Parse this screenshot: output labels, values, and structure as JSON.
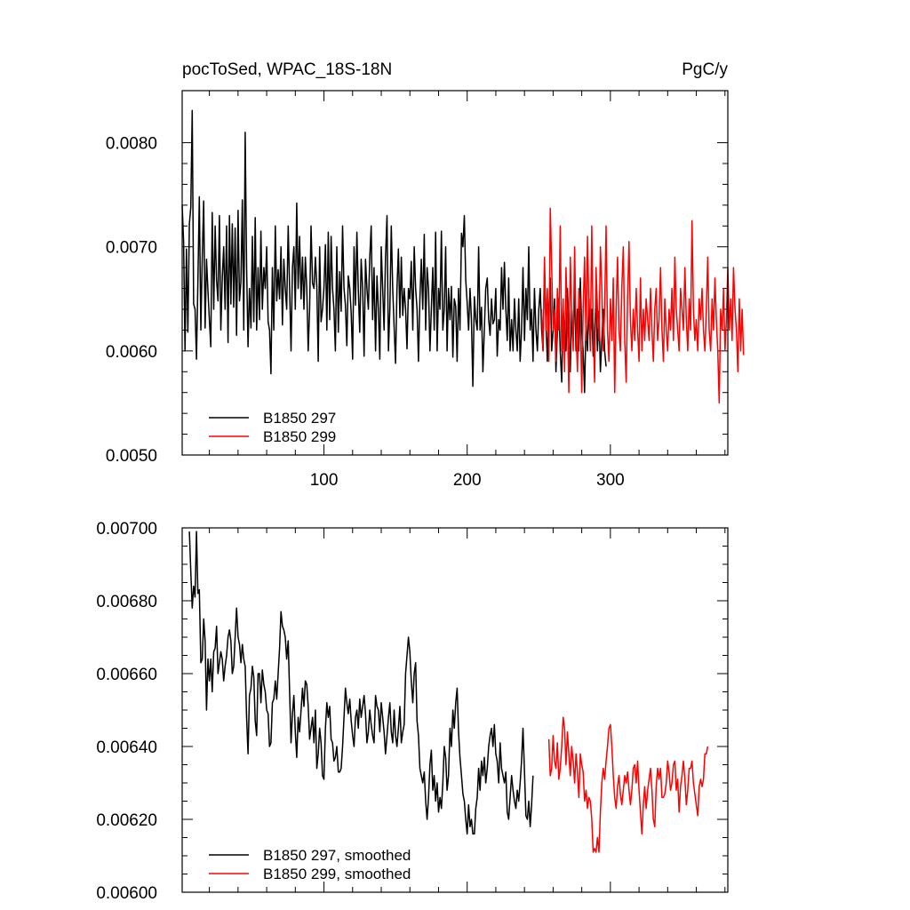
{
  "chart_data": [
    {
      "type": "line",
      "title_left": "pocToSed, WPAC_18S-18N",
      "title_right": "PgC/y",
      "xlabel": "",
      "ylabel": "",
      "xlim": [
        1,
        382
      ],
      "ylim": [
        0.005,
        0.0085
      ],
      "x_ticks": [
        100,
        200,
        300
      ],
      "x_tick_labels": [
        "100",
        "200",
        "300"
      ],
      "y_ticks": [
        0.005,
        0.006,
        0.007,
        0.008
      ],
      "y_tick_labels": [
        "0.0050",
        "0.0060",
        "0.0070",
        "0.0080"
      ],
      "grid": false,
      "legend_position": "bottom-left",
      "series": [
        {
          "name": "B1850 297",
          "color": "#000000",
          "x_start": 1,
          "values": [
            0.0074,
            0.00705,
            0.006,
            0.00698,
            0.00618,
            0.00722,
            0.00738,
            0.00831,
            0.00645,
            0.0064,
            0.00592,
            0.00668,
            0.00748,
            0.0062,
            0.0069,
            0.00744,
            0.00622,
            0.00688,
            0.00658,
            0.0063,
            0.00604,
            0.00733,
            0.0064,
            0.0072,
            0.00668,
            0.00648,
            0.0073,
            0.0062,
            0.0067,
            0.007,
            0.0064,
            0.0072,
            0.00608,
            0.0073,
            0.00645,
            0.00722,
            0.00642,
            0.00718,
            0.00615,
            0.00735,
            0.00648,
            0.00666,
            0.00745,
            0.0062,
            0.0081,
            0.0068,
            0.00604,
            0.0066,
            0.00622,
            0.0071,
            0.00628,
            0.00728,
            0.0062,
            0.0068,
            0.0063,
            0.00715,
            0.0064,
            0.0068,
            0.0066,
            0.007,
            0.00628,
            0.0062,
            0.00578,
            0.0068,
            0.0062,
            0.0072,
            0.00648,
            0.00678,
            0.0065,
            0.007,
            0.00625,
            0.00688,
            0.0066,
            0.0064,
            0.0072,
            0.0066,
            0.006,
            0.0068,
            0.007,
            0.0064,
            0.00742,
            0.0066,
            0.0071,
            0.0065,
            0.0069,
            0.0064,
            0.0069,
            0.0066,
            0.006,
            0.0064,
            0.0072,
            0.00665,
            0.0066,
            0.0069,
            0.00662,
            0.0059,
            0.007,
            0.00628,
            0.0064,
            0.0066,
            0.00702,
            0.0062,
            0.00714,
            0.0063,
            0.0071,
            0.0066,
            0.0064,
            0.006,
            0.007,
            0.00618,
            0.00676,
            0.00638,
            0.0072,
            0.0066,
            0.00644,
            0.00605,
            0.00672,
            0.0066,
            0.00636,
            0.00592,
            0.007,
            0.00644,
            0.00714,
            0.00658,
            0.00618,
            0.00688,
            0.0066,
            0.00595,
            0.00688,
            0.0066,
            0.0064,
            0.0069,
            0.0072,
            0.0063,
            0.0068,
            0.006,
            0.00672,
            0.0064,
            0.00592,
            0.007,
            0.0066,
            0.0062,
            0.0069,
            0.0073,
            0.006,
            0.0064,
            0.0072,
            0.0066,
            0.00623,
            0.00588,
            0.0066,
            0.00698,
            0.00632,
            0.0069,
            0.00634,
            0.0066,
            0.0064,
            0.00602,
            0.0066,
            0.0065,
            0.00686,
            0.0062,
            0.007,
            0.0066,
            0.0064,
            0.0059,
            0.0065,
            0.00688,
            0.0064,
            0.00712,
            0.0062,
            0.0068,
            0.0066,
            0.006,
            0.0064,
            0.0068,
            0.0062,
            0.00714,
            0.006,
            0.0066,
            0.0064,
            0.00715,
            0.0062,
            0.0064,
            0.007,
            0.006,
            0.0066,
            0.0063,
            0.00662,
            0.00594,
            0.0065,
            0.00643,
            0.0059,
            0.0066,
            0.0062,
            0.00713,
            0.007,
            0.0073,
            0.00668,
            0.00646,
            0.0062,
            0.0066,
            0.0063,
            0.00566,
            0.00652,
            0.0063,
            0.0062,
            0.007,
            0.0062,
            0.00642,
            0.0058,
            0.0062,
            0.0066,
            0.0067,
            0.0063,
            0.00615,
            0.0065,
            0.00626,
            0.0063,
            0.0066,
            0.00595,
            0.0063,
            0.0062,
            0.0068,
            0.0064,
            0.00685,
            0.0064,
            0.0061,
            0.0067,
            0.006,
            0.0063,
            0.006,
            0.0065,
            0.0062,
            0.006,
            0.0065,
            0.0059,
            0.0062,
            0.0068,
            0.0061,
            0.0066,
            0.0063,
            0.007,
            0.0062,
            0.0064,
            0.0059,
            0.0066,
            0.0062,
            0.006,
            0.0064,
            0.0066,
            0.0062,
            0.006,
            0.0068,
            0.0063,
            0.0059,
            0.0064,
            0.0067,
            0.006,
            0.0062,
            0.0065,
            0.0058,
            0.0062,
            0.0065,
            0.006,
            0.0057,
            0.0064,
            0.0062,
            0.006,
            0.0066,
            0.0062,
            0.0058,
            0.0064,
            0.0061,
            0.0066,
            0.006,
            0.0064,
            0.006,
            0.0067,
            0.0062,
            0.006,
            0.0056,
            0.0063,
            0.006,
            0.0065,
            0.0061,
            0.0064,
            0.00595,
            0.0062,
            0.0065,
            0.006,
            0.00638,
            0.0058,
            0.0061,
            0.0064,
            0.006,
            0.00585
          ]
        },
        {
          "name": "B1850 299",
          "color": "#ff0000",
          "x_start": 252,
          "values": [
            0.0064,
            0.006,
            0.0069,
            0.0062,
            0.0066,
            0.0059,
            0.00737,
            0.0068,
            0.0062,
            0.0064,
            0.0059,
            0.0066,
            0.0062,
            0.0072,
            0.006,
            0.0065,
            0.0058,
            0.0068,
            0.0063,
            0.0056,
            0.0069,
            0.0064,
            0.006,
            0.007,
            0.0062,
            0.0058,
            0.0066,
            0.0064,
            0.0056,
            0.0064,
            0.0069,
            0.0061,
            0.0071,
            0.0064,
            0.006,
            0.0072,
            0.0062,
            0.0057,
            0.0068,
            0.0064,
            0.0061,
            0.007,
            0.0066,
            0.006,
            0.0064,
            0.0072,
            0.0062,
            0.0059,
            0.0065,
            0.0061,
            0.0067,
            0.0056,
            0.0064,
            0.0069,
            0.0062,
            0.006,
            0.0066,
            0.007,
            0.0061,
            0.0057,
            0.0065,
            0.00705,
            0.0063,
            0.006,
            0.0064,
            0.0061,
            0.0066,
            0.0062,
            0.0059,
            0.0067,
            0.006,
            0.0064,
            0.0061,
            0.0065,
            0.0063,
            0.0061,
            0.0066,
            0.0062,
            0.0059,
            0.0064,
            0.0066,
            0.0061,
            0.0063,
            0.0068,
            0.0062,
            0.0059,
            0.0065,
            0.0062,
            0.006,
            0.0064,
            0.0062,
            0.0066,
            0.0061,
            0.0069,
            0.0064,
            0.0062,
            0.006,
            0.0066,
            0.0064,
            0.0062,
            0.0068,
            0.0063,
            0.006,
            0.0065,
            0.0062,
            0.00725,
            0.0064,
            0.0061,
            0.0063,
            0.006,
            0.0065,
            0.0063,
            0.0066,
            0.0062,
            0.006,
            0.0064,
            0.0069,
            0.0062,
            0.006,
            0.0065,
            0.0062,
            0.0067,
            0.0063,
            0.006,
            0.0055,
            0.0064,
            0.0062,
            0.0066,
            0.006,
            0.0063,
            0.0068,
            0.0062,
            0.0065,
            0.0061,
            0.0068,
            0.0064,
            0.0062,
            0.0058,
            0.0065,
            0.006,
            0.0064,
            0.00596
          ]
        }
      ]
    },
    {
      "type": "line",
      "title_left": "",
      "title_right": "",
      "xlabel": "",
      "ylabel": "",
      "xlim": [
        1,
        382
      ],
      "ylim": [
        0.006,
        0.007
      ],
      "x_ticks": [
        100,
        200,
        300
      ],
      "x_tick_labels": [],
      "y_ticks": [
        0.006,
        0.0062,
        0.0064,
        0.0066,
        0.0068,
        0.007
      ],
      "y_tick_labels": [
        "0.00600",
        "0.00620",
        "0.00640",
        "0.00660",
        "0.00680",
        "0.00700"
      ],
      "grid": false,
      "legend_position": "bottom-left",
      "series": [
        {
          "name": "B1850 297, smoothed",
          "color": "#000000",
          "x_start": 6,
          "values": [
            0.00699,
            0.00688,
            0.00678,
            0.00684,
            0.00681,
            0.00699,
            0.00682,
            0.00683,
            0.00663,
            0.00664,
            0.00675,
            0.00669,
            0.0065,
            0.00664,
            0.00658,
            0.00664,
            0.00655,
            0.00666,
            0.00667,
            0.00673,
            0.0066,
            0.00663,
            0.00666,
            0.00664,
            0.00658,
            0.00662,
            0.00665,
            0.0067,
            0.00672,
            0.00669,
            0.0066,
            0.00662,
            0.0067,
            0.00678,
            0.0067,
            0.00668,
            0.00663,
            0.00668,
            0.00664,
            0.00662,
            0.00648,
            0.00638,
            0.00654,
            0.00656,
            0.00662,
            0.00659,
            0.00647,
            0.00643,
            0.0066,
            0.0066,
            0.00652,
            0.00661,
            0.00657,
            0.00655,
            0.0065,
            0.00649,
            0.0064,
            0.00641,
            0.00652,
            0.00653,
            0.00658,
            0.00653,
            0.0066,
            0.00667,
            0.00677,
            0.00673,
            0.00672,
            0.0067,
            0.00664,
            0.00669,
            0.00655,
            0.00641,
            0.00649,
            0.00654,
            0.00644,
            0.00637,
            0.00648,
            0.00644,
            0.0065,
            0.00656,
            0.00651,
            0.00658,
            0.00657,
            0.00651,
            0.00642,
            0.00645,
            0.00648,
            0.00641,
            0.0065,
            0.00634,
            0.00638,
            0.00645,
            0.00641,
            0.00632,
            0.00631,
            0.00645,
            0.00652,
            0.00648,
            0.00651,
            0.00642,
            0.00641,
            0.00636,
            0.00637,
            0.0064,
            0.00633,
            0.00633,
            0.00634,
            0.0064,
            0.00648,
            0.00656,
            0.00652,
            0.00649,
            0.00653,
            0.00647,
            0.00643,
            0.0064,
            0.00648,
            0.0065,
            0.00645,
            0.00653,
            0.00648,
            0.00651,
            0.00654,
            0.00649,
            0.00641,
            0.00644,
            0.0065,
            0.00646,
            0.00643,
            0.00641,
            0.00654,
            0.00651,
            0.0065,
            0.00644,
            0.00652,
            0.00648,
            0.00644,
            0.00638,
            0.00643,
            0.00648,
            0.00652,
            0.00644,
            0.00641,
            0.0065,
            0.00643,
            0.0064,
            0.00645,
            0.00651,
            0.00641,
            0.00644,
            0.00646,
            0.0066,
            0.00665,
            0.0067,
            0.00666,
            0.00658,
            0.00652,
            0.0066,
            0.00663,
            0.00647,
            0.00643,
            0.00634,
            0.00632,
            0.0063,
            0.00633,
            0.00625,
            0.0062,
            0.00626,
            0.00635,
            0.00639,
            0.00628,
            0.00632,
            0.00625,
            0.0063,
            0.00622,
            0.00626,
            0.00623,
            0.0063,
            0.0064,
            0.00637,
            0.00628,
            0.00632,
            0.00645,
            0.0064,
            0.0065,
            0.00645,
            0.00652,
            0.00656,
            0.00644,
            0.00637,
            0.00632,
            0.00627,
            0.00625,
            0.0062,
            0.00616,
            0.00624,
            0.00618,
            0.0062,
            0.00616,
            0.00616,
            0.00623,
            0.00626,
            0.00634,
            0.00628,
            0.00636,
            0.00632,
            0.00637,
            0.0063,
            0.00634,
            0.0064,
            0.00643,
            0.00645,
            0.0064,
            0.00646,
            0.00638,
            0.00636,
            0.0063,
            0.00641,
            0.00634,
            0.00632,
            0.0063,
            0.00633,
            0.00622,
            0.0062,
            0.00626,
            0.00632,
            0.00628,
            0.00625,
            0.00623,
            0.00628,
            0.00625,
            0.0063,
            0.00636,
            0.00645,
            0.00633,
            0.00621,
            0.0062,
            0.00625,
            0.00618,
            0.00624,
            0.00632
          ]
        },
        {
          "name": "B1850 299, smoothed",
          "color": "#ff0000",
          "x_start": 257,
          "values": [
            0.00642,
            0.00632,
            0.00634,
            0.00643,
            0.00636,
            0.00634,
            0.00641,
            0.00631,
            0.00634,
            0.0064,
            0.00648,
            0.00645,
            0.00635,
            0.00644,
            0.00638,
            0.00632,
            0.0064,
            0.00636,
            0.0063,
            0.00638,
            0.00633,
            0.00626,
            0.00638,
            0.00635,
            0.00633,
            0.00625,
            0.00628,
            0.00623,
            0.00626,
            0.00625,
            0.0062,
            0.00611,
            0.00612,
            0.00611,
            0.00615,
            0.00611,
            0.00622,
            0.0063,
            0.00634,
            0.00631,
            0.00636,
            0.0064,
            0.00645,
            0.00646,
            0.0064,
            0.00632,
            0.00626,
            0.00623,
            0.00629,
            0.00632,
            0.00627,
            0.00624,
            0.00628,
            0.00632,
            0.0063,
            0.00633,
            0.00628,
            0.00624,
            0.00628,
            0.00634,
            0.00635,
            0.0063,
            0.00636,
            0.00628,
            0.00622,
            0.00616,
            0.00624,
            0.00629,
            0.00623,
            0.00628,
            0.00631,
            0.00634,
            0.00628,
            0.0062,
            0.00618,
            0.00629,
            0.00634,
            0.00631,
            0.00634,
            0.00626,
            0.00626,
            0.00627,
            0.0063,
            0.00636,
            0.00633,
            0.00628,
            0.0063,
            0.00635,
            0.00636,
            0.00628,
            0.00631,
            0.00622,
            0.00629,
            0.00632,
            0.00636,
            0.00631,
            0.00624,
            0.00628,
            0.00634,
            0.00634,
            0.00636,
            0.0063,
            0.00627,
            0.00624,
            0.00621,
            0.00629,
            0.00631,
            0.00629,
            0.00631,
            0.00638,
            0.00638,
            0.0064
          ]
        }
      ]
    }
  ]
}
